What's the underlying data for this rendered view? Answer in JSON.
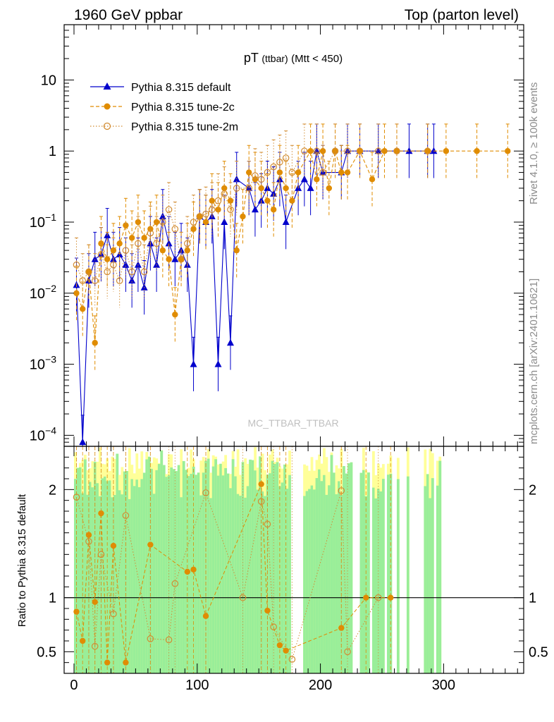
{
  "header": {
    "left": "1960 GeV ppbar",
    "right": "Top (parton level)"
  },
  "side_labels": {
    "rivet": "Rivet 4.1.0, ≥ 100k events",
    "mcplots": "mcplots.cern.ch [arXiv:2401.10621]"
  },
  "watermark": "MC_TTBAR_TTBAR",
  "colors": {
    "default": "#0000cc",
    "tune2c": "#e08c00",
    "tune2m": "#d28c32",
    "band_green": "#99ee99",
    "band_yellow": "#ffff99"
  },
  "chart_data": [
    {
      "type": "line",
      "title": "pT (ttbar) (Mtt < 450)",
      "title_main": "pT",
      "title_sub": "(ttbar)",
      "title_cut": "(Mtt < 450)",
      "xlabel": "",
      "ylabel": "",
      "yscale": "log",
      "xlim": [
        -8,
        365
      ],
      "ylim": [
        7e-05,
        60
      ],
      "yticks": [
        {
          "v": 0.0001,
          "base": "10",
          "exp": "−4"
        },
        {
          "v": 0.001,
          "base": "10",
          "exp": "−3"
        },
        {
          "v": 0.01,
          "base": "10",
          "exp": "−2"
        },
        {
          "v": 0.1,
          "base": "10",
          "exp": "−1"
        },
        {
          "v": 1,
          "base": "1",
          "exp": ""
        },
        {
          "v": 10,
          "base": "10",
          "exp": ""
        }
      ],
      "legend_position": "top-left",
      "series": [
        {
          "name": "Pythia 8.315 default",
          "style": "solid-triangle",
          "x": [
            2,
            7,
            12,
            17,
            22,
            27,
            32,
            37,
            42,
            47,
            52,
            57,
            62,
            67,
            72,
            77,
            82,
            87,
            92,
            97,
            102,
            107,
            112,
            117,
            122,
            127,
            132,
            142,
            147,
            152,
            157,
            162,
            167,
            172,
            182,
            187,
            192,
            197,
            202,
            217,
            222,
            232,
            247,
            272,
            287,
            292
          ],
          "y": [
            0.013,
            8e-05,
            0.015,
            0.03,
            0.035,
            0.065,
            0.03,
            0.035,
            0.025,
            0.015,
            0.025,
            0.012,
            0.05,
            0.025,
            0.12,
            0.05,
            0.03,
            0.04,
            0.025,
            0.001,
            0.12,
            0.1,
            0.12,
            0.001,
            0.1,
            0.002,
            0.4,
            0.3,
            0.15,
            0.2,
            0.3,
            0.25,
            0.4,
            0.1,
            0.3,
            0.4,
            0.3,
            1,
            0.5,
            0.5,
            1,
            1,
            1,
            1,
            1,
            1
          ]
        },
        {
          "name": "Pythia 8.315 tune-2c",
          "style": "dashed-circle",
          "x": [
            2,
            7,
            12,
            17,
            22,
            27,
            32,
            37,
            42,
            47,
            52,
            57,
            62,
            67,
            72,
            77,
            82,
            87,
            92,
            97,
            102,
            107,
            112,
            117,
            122,
            127,
            132,
            137,
            142,
            147,
            152,
            157,
            162,
            167,
            172,
            177,
            182,
            192,
            197,
            202,
            207,
            212,
            217,
            222,
            232,
            242,
            252,
            262,
            287,
            302,
            327,
            352
          ],
          "y": [
            0.01,
            0.006,
            0.02,
            0.002,
            0.05,
            0.03,
            0.04,
            0.05,
            0.09,
            0.06,
            0.1,
            0.06,
            0.08,
            0.1,
            0.04,
            0.03,
            0.005,
            0.03,
            0.04,
            0.08,
            0.12,
            0.1,
            0.2,
            0.15,
            0.3,
            0.2,
            0.04,
            0.12,
            0.5,
            0.4,
            0.3,
            0.2,
            0.15,
            0.5,
            0.3,
            0.2,
            0.5,
            1,
            0.4,
            1,
            0.3,
            1,
            0.5,
            0.5,
            1,
            0.4,
            1,
            1,
            1,
            1,
            1,
            1
          ]
        },
        {
          "name": "Pythia 8.315 tune-2m",
          "style": "dotted-open-circle",
          "x": [
            2,
            7,
            12,
            17,
            22,
            27,
            32,
            37,
            42,
            47,
            52,
            57,
            62,
            67,
            72,
            77,
            82,
            87,
            92,
            97,
            102,
            107,
            112,
            117,
            122,
            127,
            132,
            142,
            147,
            152,
            157,
            162,
            167,
            172,
            177,
            187,
            197,
            202,
            212,
            222,
            232,
            247,
            262,
            287
          ],
          "y": [
            0.025,
            0.015,
            0.02,
            0.015,
            0.035,
            0.02,
            0.025,
            0.015,
            0.04,
            0.02,
            0.05,
            0.02,
            0.07,
            0.05,
            0.1,
            0.15,
            0.08,
            0.03,
            0.05,
            0.1,
            0.12,
            0.13,
            0.15,
            0.2,
            0.25,
            0.15,
            0.3,
            0.3,
            0.45,
            0.4,
            0.5,
            0.6,
            0.7,
            0.8,
            0.5,
            1,
            1,
            0.5,
            1,
            1,
            1,
            1,
            1,
            1
          ]
        }
      ]
    },
    {
      "type": "line",
      "title": "",
      "xlabel": "",
      "ylabel": "Ratio to Pythia 8.315 default",
      "xlim": [
        -8,
        365
      ],
      "ylim": [
        0.3,
        2.4
      ],
      "xticks": [
        0,
        100,
        200,
        300
      ],
      "yticks": [
        0.5,
        1,
        2
      ],
      "reference_line": 1,
      "band_x_range": [
        0,
        297
      ],
      "band_gaps": [
        [
          176,
          186
        ],
        [
          226,
          232
        ],
        [
          240,
          242
        ],
        [
          252,
          254
        ],
        [
          258,
          262
        ],
        [
          264,
          270
        ],
        [
          272,
          284
        ],
        [
          292,
          294
        ]
      ],
      "series": [
        {
          "name": "Pythia 8.315 tune-2c",
          "style": "dashed-circle",
          "x": [
            2,
            7,
            12,
            17,
            22,
            27,
            32,
            42,
            62,
            92,
            97,
            107,
            152,
            157,
            167,
            172,
            217,
            237,
            257
          ],
          "y": [
            0.87,
            0.6,
            1.58,
            0.96,
            1.78,
            0.4,
            1.48,
            0.4,
            1.49,
            1.24,
            1.26,
            0.83,
            2.05,
            0.88,
            0.56,
            0.51,
            0.72,
            1,
            1
          ]
        },
        {
          "name": "Pythia 8.315 tune-2m",
          "style": "dotted-open-circle",
          "x": [
            2,
            12,
            17,
            22,
            32,
            42,
            62,
            77,
            82,
            107,
            137,
            152,
            157,
            162,
            177,
            217,
            222,
            247
          ],
          "y": [
            1.93,
            1.52,
            0.55,
            1.4,
            0.85,
            1.76,
            0.62,
            0.61,
            1.13,
            1.97,
            1,
            1.89,
            1.68,
            0.73,
            0.43,
            1.99,
            0.5,
            1
          ]
        }
      ]
    }
  ]
}
